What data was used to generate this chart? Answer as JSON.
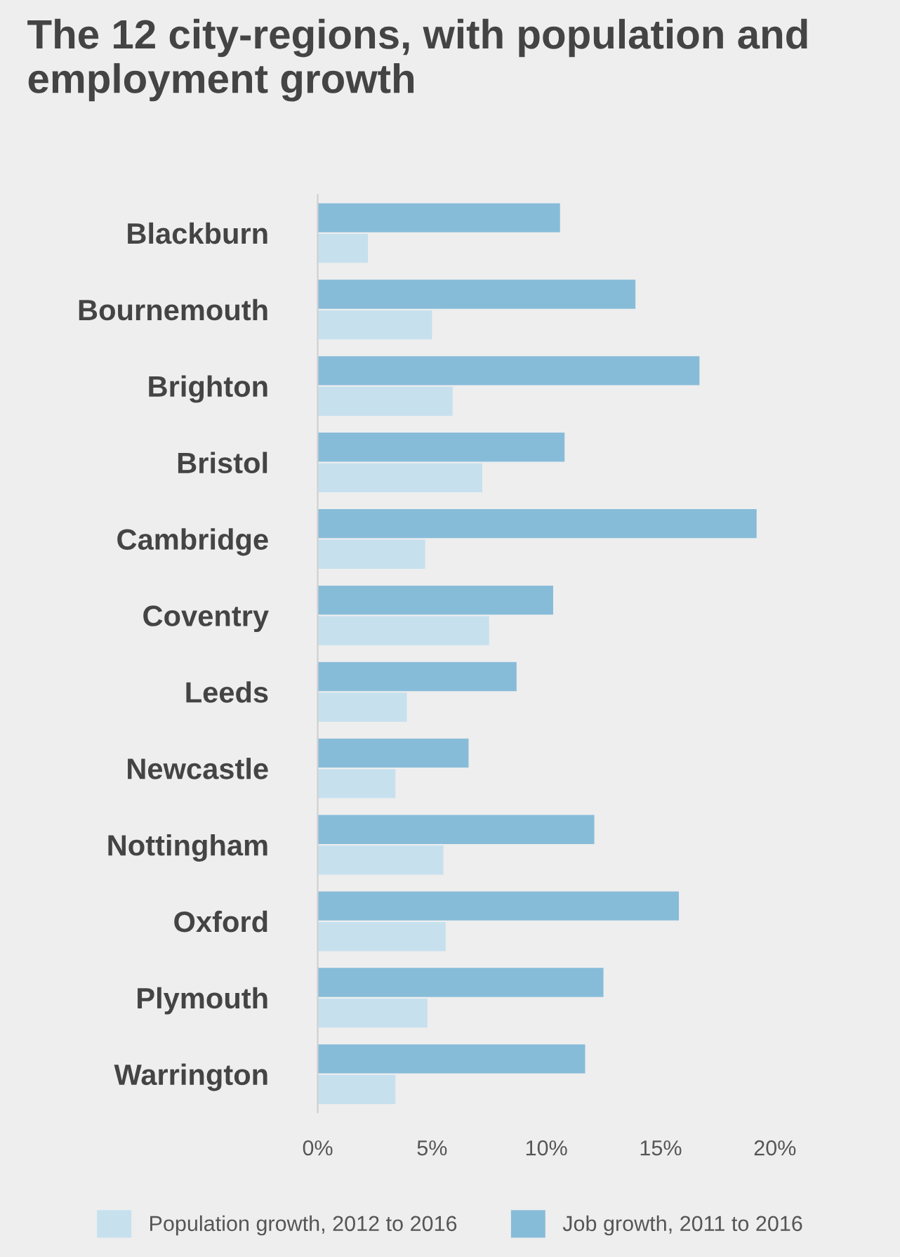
{
  "chart_data": {
    "type": "bar",
    "orientation": "horizontal",
    "title": "The 12 city-regions, with population and employment growth",
    "categories": [
      "Blackburn",
      "Bournemouth",
      "Brighton",
      "Bristol",
      "Cambridge",
      "Coventry",
      "Leeds",
      "Newcastle",
      "Nottingham",
      "Oxford",
      "Plymouth",
      "Warrington"
    ],
    "series": [
      {
        "name": "Population growth, 2012 to 2016",
        "color": "#c6e0ee",
        "values": [
          2.2,
          5.0,
          5.9,
          7.2,
          4.7,
          7.5,
          3.9,
          3.4,
          5.5,
          5.6,
          4.8,
          3.4
        ]
      },
      {
        "name": "Job growth, 2011 to 2016",
        "color": "#87bcd9",
        "values": [
          10.6,
          13.9,
          16.7,
          10.8,
          19.2,
          10.3,
          8.7,
          6.6,
          12.1,
          15.8,
          12.5,
          11.7
        ]
      }
    ],
    "xlim": [
      0,
      20
    ],
    "xticks": [
      {
        "value": 0,
        "label": "0%"
      },
      {
        "value": 5,
        "label": "5%"
      },
      {
        "value": 10,
        "label": "10%"
      },
      {
        "value": 15,
        "label": "15%"
      },
      {
        "value": 20,
        "label": "20%"
      }
    ],
    "grid": false,
    "legend": "bottom"
  }
}
